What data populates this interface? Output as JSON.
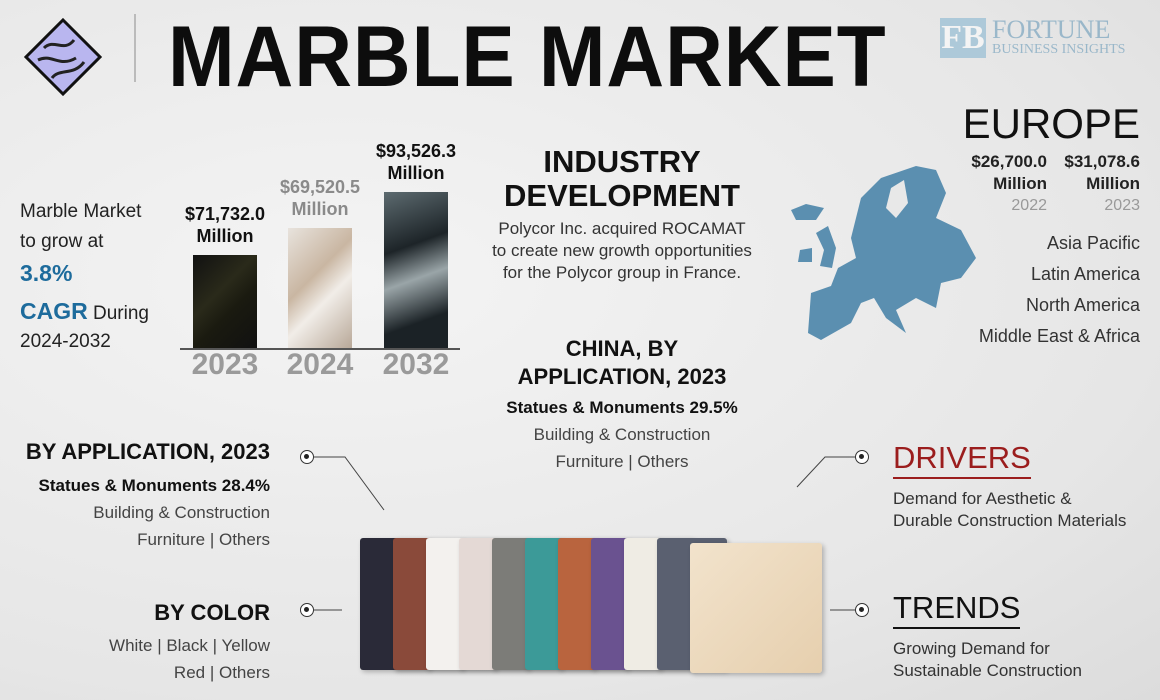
{
  "header": {
    "title": "MARBLE MARKET",
    "brand_line1": "FORTUNE",
    "brand_line2": "BUSINESS INSIGHTS"
  },
  "growth": {
    "line1": "Marble Market",
    "line2": "to grow at",
    "cagr_value": "3.8%",
    "cagr_label": "CAGR",
    "during": "During",
    "period": "2024-2032"
  },
  "bars": [
    {
      "year": "2023",
      "value": "$71,732.0",
      "unit": "Million",
      "amount": 71732.0
    },
    {
      "year": "2024",
      "value": "$69,520.5",
      "unit": "Million",
      "amount": 69520.5
    },
    {
      "year": "2032",
      "value": "$93,526.3",
      "unit": "Million",
      "amount": 93526.3
    }
  ],
  "industry": {
    "title1": "INDUSTRY",
    "title2": "DEVELOPMENT",
    "lines": [
      "Polycor Inc. acquired ROCAMAT",
      "to create new growth opportunities",
      "for the Polycor group in France."
    ]
  },
  "china": {
    "title1": "CHINA, BY",
    "title2": "APPLICATION, 2023",
    "lines": [
      "Statues & Monuments 29.5%",
      "Building & Construction",
      "Furniture  |  Others"
    ]
  },
  "europe": {
    "title": "EUROPE",
    "values": [
      {
        "value": "$26,700.0",
        "unit": "Million",
        "year": "2022"
      },
      {
        "value": "$31,078.6",
        "unit": "Million",
        "year": "2023"
      }
    ],
    "map_color": "#5b8fb0"
  },
  "regions": [
    "Asia Pacific",
    "Latin America",
    "North America",
    "Middle East & Africa"
  ],
  "by_application": {
    "title": "BY APPLICATION, 2023",
    "lines": [
      "Statues & Monuments 28.4%",
      "Building & Construction",
      "Furniture  |  Others"
    ]
  },
  "by_color": {
    "title": "BY COLOR",
    "lines": [
      "White  |  Black  |  Yellow",
      "Red  |  Others"
    ]
  },
  "drivers": {
    "title": "DRIVERS",
    "lines": [
      "Demand for Aesthetic &",
      "Durable Construction Materials"
    ],
    "color": "#9b1d1d"
  },
  "trends": {
    "title": "TRENDS",
    "lines": [
      "Growing Demand for",
      "Sustainable Construction"
    ]
  }
}
